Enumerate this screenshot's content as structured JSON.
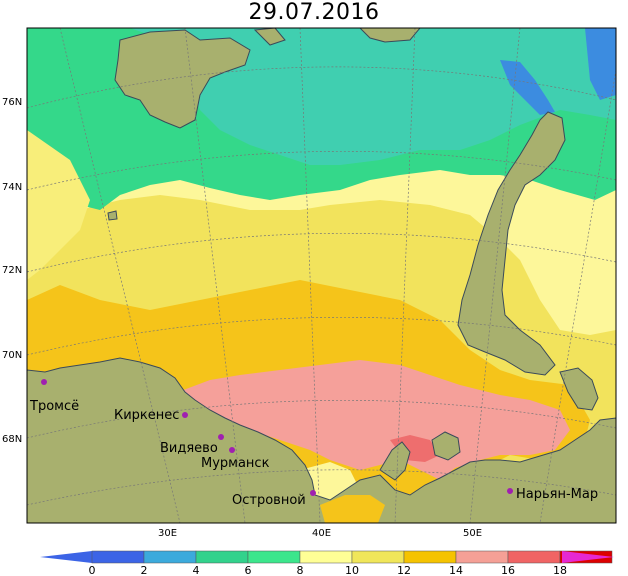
{
  "title": "29.07.2016",
  "latitude_labels": [
    "76N",
    "74N",
    "72N",
    "70N",
    "68N"
  ],
  "longitude_labels": [
    "30E",
    "40E",
    "50E"
  ],
  "cities": [
    {
      "name": "Тромсё"
    },
    {
      "name": "Киркенес"
    },
    {
      "name": "Видяево"
    },
    {
      "name": "Мурманск"
    },
    {
      "name": "Островной"
    },
    {
      "name": "Нарьян-Мар"
    }
  ],
  "legend": {
    "ticks": [
      "0",
      "2",
      "4",
      "6",
      "8",
      "10",
      "12",
      "14",
      "16",
      "18"
    ],
    "colors": [
      "#3c64e6",
      "#3caadc",
      "#32d28c",
      "#3ce68c",
      "#ffff96",
      "#f0e65a",
      "#f5c300",
      "#f5a096",
      "#f06464",
      "#dc0000"
    ],
    "arrow_left_color": "#3c64e6",
    "arrow_right_color": "#e628d2"
  },
  "colors": {
    "land": "#a8b06e",
    "coast": "#3a4a5a",
    "city_marker": "#a020b0",
    "grid": "#777777"
  }
}
